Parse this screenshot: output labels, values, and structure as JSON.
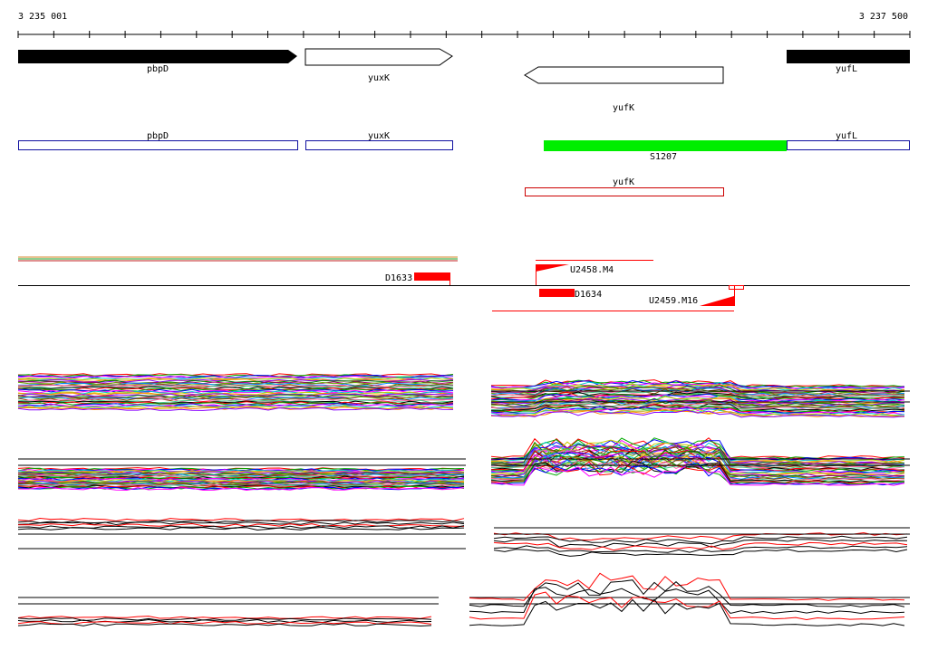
{
  "coordinates": {
    "start": "3 235 001",
    "end": "3 237 500"
  },
  "colors": {
    "black": "#000000",
    "blue": "#1010a0",
    "red": "#ff0000",
    "green": "#00ee00",
    "dark_red": "#cc0000"
  },
  "genes": [
    {
      "name": "pbpD",
      "strand": "+",
      "style": "filled"
    },
    {
      "name": "yuxK",
      "strand": "+",
      "style": "outline"
    },
    {
      "name": "yufK",
      "strand": "-",
      "style": "outline"
    },
    {
      "name": "yufL",
      "strand": "+",
      "style": "filled"
    }
  ],
  "blue_boxes": [
    "pbpD",
    "yuxK",
    "yufL"
  ],
  "green_segment": "S1207",
  "red_box": "yufK",
  "features": {
    "d1633": "D1633",
    "d1634": "D1634",
    "u2458": "U2458.M4",
    "u2459": "U2459.M16"
  }
}
